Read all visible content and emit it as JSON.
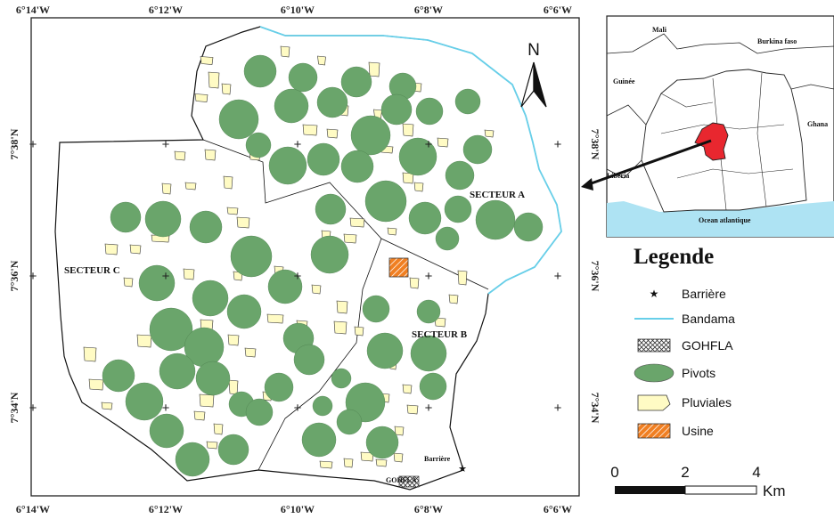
{
  "map": {
    "lon_labels": [
      "6°14'W",
      "6°12'W",
      "6°10'W",
      "6°8'W",
      "6°6'W"
    ],
    "lat_labels": [
      "7°38'N",
      "7°36'N",
      "7°34'N"
    ],
    "sectors": [
      "SECTEUR A",
      "SECTEUR B",
      "SECTEUR C"
    ],
    "barriere_label": "Barrière",
    "gohfla_label": "GOHFLA",
    "north_label": "N"
  },
  "inset": {
    "countries": [
      "Mali",
      "Burkina faso",
      "Guinée",
      "Ghana",
      "Liberia"
    ],
    "ocean": "Ocean atlantique"
  },
  "legend": {
    "title": "Legende",
    "items": [
      "Barrière",
      "Bandama",
      "GOHFLA",
      "Pivots",
      "Pluviales",
      "Usine"
    ]
  },
  "scale": {
    "ticks": [
      "0",
      "2",
      "4"
    ],
    "unit": "Km"
  },
  "colors": {
    "pivot": "#6aa56b",
    "pluviale": "#fffbc4",
    "river": "#67cfe9",
    "ocean": "#aee3f3",
    "highlight": "#e8272f",
    "usine": "#f07f22"
  }
}
